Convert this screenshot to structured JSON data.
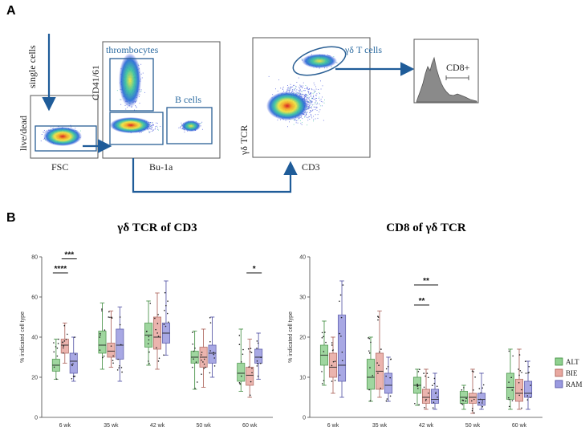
{
  "panel_a": {
    "letter": "A",
    "colors": {
      "gate": "#2a5f94",
      "gate_text": "#2a6aa0",
      "arrow": "#1f5c99"
    },
    "plot1": {
      "gate_label": "single cells",
      "ylabel": "live/dead",
      "xlabel": "FSC"
    },
    "plot2": {
      "ylabel": "CD41/61",
      "xlabel": "Bu-1a",
      "gate_thrombo": "thrombocytes",
      "gate_bcells": "B cells"
    },
    "plot3": {
      "ylabel": "γδ TCR",
      "xlabel": "CD3",
      "gate_label": "γδ T cells"
    },
    "histogram": {
      "label": "CD8+"
    }
  },
  "panel_b": {
    "letter": "B"
  },
  "chart_data": [
    {
      "type": "box",
      "title": "γδ TCR of CD3",
      "ylabel": "% indicated cell type",
      "ylim": [
        0,
        80
      ],
      "yticks": [
        "0",
        "20",
        "40",
        "60",
        "80"
      ],
      "categories": [
        "6 wk",
        "35 wk",
        "42 wk",
        "50 wk",
        "60 wk"
      ],
      "series": [
        {
          "name": "ALT",
          "color": "#8fd08f",
          "stroke": "#3a8a3a",
          "boxes": [
            {
              "min": 19,
              "q1": 23,
              "median": 26,
              "q3": 29,
              "max": 39
            },
            {
              "min": 24,
              "q1": 32,
              "median": 36,
              "q3": 43,
              "max": 57
            },
            {
              "min": 26,
              "q1": 35,
              "median": 41,
              "q3": 47,
              "max": 58
            },
            {
              "min": 14,
              "q1": 27,
              "median": 30,
              "q3": 33,
              "max": 43
            },
            {
              "min": 13,
              "q1": 18,
              "median": 22,
              "q3": 27,
              "max": 44
            }
          ]
        },
        {
          "name": "BIE",
          "color": "#e8a8a0",
          "stroke": "#a85b52",
          "boxes": [
            {
              "min": 27,
              "q1": 32,
              "median": 36,
              "q3": 39,
              "max": 47
            },
            {
              "min": 25,
              "q1": 30,
              "median": 33,
              "q3": 37,
              "max": 53
            },
            {
              "min": 24,
              "q1": 34,
              "median": 40,
              "q3": 50,
              "max": 62
            },
            {
              "min": 15,
              "q1": 25,
              "median": 30,
              "q3": 35,
              "max": 44
            },
            {
              "min": 10,
              "q1": 16,
              "median": 21,
              "q3": 25,
              "max": 39
            }
          ]
        },
        {
          "name": "RAM",
          "color": "#9a9ae0",
          "stroke": "#4a4aa0",
          "boxes": [
            {
              "min": 18,
              "q1": 22,
              "median": 28,
              "q3": 32,
              "max": 40
            },
            {
              "min": 18,
              "q1": 29,
              "median": 36,
              "q3": 44,
              "max": 55
            },
            {
              "min": 31,
              "q1": 37,
              "median": 42,
              "q3": 47,
              "max": 68
            },
            {
              "min": 20,
              "q1": 27,
              "median": 32,
              "q3": 36,
              "max": 50
            },
            {
              "min": 19,
              "q1": 27,
              "median": 30,
              "q3": 34,
              "max": 42
            }
          ]
        }
      ],
      "significance": [
        {
          "label": "****",
          "category": "6 wk",
          "from": "ALT",
          "to": "BIE",
          "y": 72
        },
        {
          "label": "***",
          "category": "6 wk",
          "from": "BIE",
          "to": "RAM",
          "y": 79
        },
        {
          "label": "*",
          "category": "60 wk",
          "from": "BIE",
          "to": "RAM",
          "y": 72
        }
      ]
    },
    {
      "type": "box",
      "title": "CD8 of γδ TCR",
      "ylabel": "% indicated cell type",
      "ylim": [
        0,
        40
      ],
      "yticks": [
        "0",
        "10",
        "20",
        "30",
        "40"
      ],
      "categories": [
        "6 wk",
        "35 wk",
        "42 wk",
        "50 wk",
        "60 wk"
      ],
      "series": [
        {
          "name": "ALT",
          "color": "#8fd08f",
          "stroke": "#3a8a3a",
          "boxes": [
            {
              "min": 8,
              "q1": 13,
              "median": 15.5,
              "q3": 18,
              "max": 24
            },
            {
              "min": 4,
              "q1": 7,
              "median": 10,
              "q3": 14.5,
              "max": 20
            },
            {
              "min": 3,
              "q1": 6,
              "median": 8,
              "q3": 10,
              "max": 12
            },
            {
              "min": 2,
              "q1": 3.5,
              "median": 5,
              "q3": 6.5,
              "max": 8
            },
            {
              "min": 2,
              "q1": 4.5,
              "median": 7.5,
              "q3": 11,
              "max": 17
            }
          ]
        },
        {
          "name": "BIE",
          "color": "#e8a8a0",
          "stroke": "#a85b52",
          "boxes": [
            {
              "min": 6,
              "q1": 10,
              "median": 12.5,
              "q3": 16,
              "max": 20
            },
            {
              "min": 5,
              "q1": 7,
              "median": 11.5,
              "q3": 16,
              "max": 26.5
            },
            {
              "min": 2,
              "q1": 3.5,
              "median": 5,
              "q3": 7,
              "max": 12
            },
            {
              "min": 1,
              "q1": 3.5,
              "median": 5,
              "q3": 6,
              "max": 12
            },
            {
              "min": 2,
              "q1": 4,
              "median": 6,
              "q3": 9.5,
              "max": 17
            }
          ]
        },
        {
          "name": "RAM",
          "color": "#9a9ae0",
          "stroke": "#4a4aa0",
          "boxes": [
            {
              "min": 5,
              "q1": 9,
              "median": 13,
              "q3": 25.5,
              "max": 34
            },
            {
              "min": 4,
              "q1": 6,
              "median": 8,
              "q3": 11,
              "max": 15
            },
            {
              "min": 2,
              "q1": 3.5,
              "median": 4.5,
              "q3": 7,
              "max": 11
            },
            {
              "min": 2,
              "q1": 3,
              "median": 4.5,
              "q3": 6,
              "max": 11
            },
            {
              "min": 2,
              "q1": 5,
              "median": 6,
              "q3": 9,
              "max": 14
            }
          ]
        }
      ],
      "significance": [
        {
          "label": "**",
          "category": "42 wk",
          "from": "ALT",
          "to": "RAM",
          "y": 33
        },
        {
          "label": "**",
          "category": "42 wk",
          "from": "ALT",
          "to": "BIE",
          "y": 28
        }
      ]
    }
  ],
  "legend": [
    {
      "label": "ALT",
      "color": "#8fd08f",
      "stroke": "#3a8a3a"
    },
    {
      "label": "BIE",
      "color": "#e8a8a0",
      "stroke": "#a85b52"
    },
    {
      "label": "RAM",
      "color": "#9a9ae0",
      "stroke": "#4a4aa0"
    }
  ]
}
